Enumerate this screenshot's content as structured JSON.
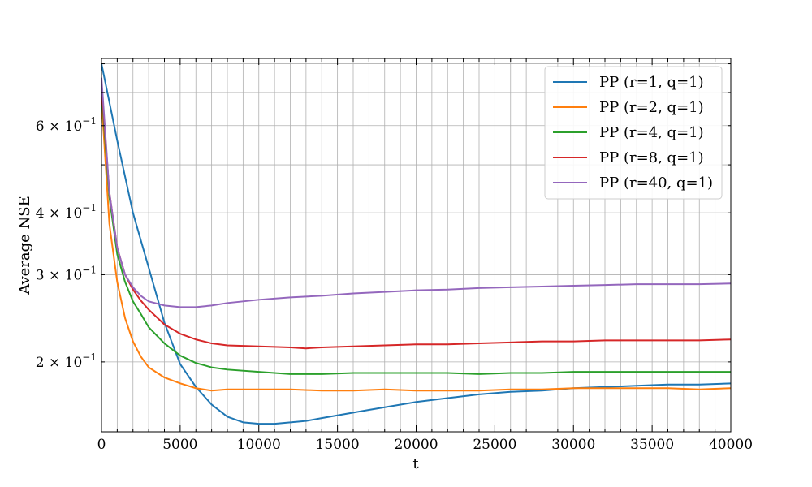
{
  "chart_data": {
    "type": "line",
    "title": "",
    "xlabel": "t",
    "ylabel": "Average NSE",
    "xlim": [
      0,
      40000
    ],
    "ylim": [
      0.1445,
      0.82
    ],
    "yscale": "log",
    "grid": true,
    "legend_position": "top-right",
    "x_ticks": [
      {
        "value": 0,
        "label": "0"
      },
      {
        "value": 5000,
        "label": "5000"
      },
      {
        "value": 10000,
        "label": "10000"
      },
      {
        "value": 15000,
        "label": "15000"
      },
      {
        "value": 20000,
        "label": "20000"
      },
      {
        "value": 25000,
        "label": "25000"
      },
      {
        "value": 30000,
        "label": "30000"
      },
      {
        "value": 35000,
        "label": "35000"
      },
      {
        "value": 40000,
        "label": "40000"
      }
    ],
    "y_ticks": [
      {
        "value": 0.2,
        "label": "2 × 10",
        "exp": "−1"
      },
      {
        "value": 0.3,
        "label": "3 × 10",
        "exp": "−1"
      },
      {
        "value": 0.4,
        "label": "4 × 10",
        "exp": "−1"
      },
      {
        "value": 0.6,
        "label": "6 × 10",
        "exp": "−1"
      }
    ],
    "series": [
      {
        "name": "PP (r=1, q=1)",
        "color": "#1f77b4",
        "points": [
          [
            0,
            0.8
          ],
          [
            1000,
            0.56
          ],
          [
            2000,
            0.4
          ],
          [
            3000,
            0.31
          ],
          [
            4000,
            0.24
          ],
          [
            5000,
            0.198
          ],
          [
            6000,
            0.178
          ],
          [
            7000,
            0.164
          ],
          [
            8000,
            0.155
          ],
          [
            9000,
            0.151
          ],
          [
            10000,
            0.15
          ],
          [
            11000,
            0.15
          ],
          [
            12000,
            0.151
          ],
          [
            13000,
            0.152
          ],
          [
            14000,
            0.154
          ],
          [
            15000,
            0.156
          ],
          [
            16000,
            0.158
          ],
          [
            17000,
            0.16
          ],
          [
            18000,
            0.162
          ],
          [
            20000,
            0.166
          ],
          [
            22000,
            0.169
          ],
          [
            24000,
            0.172
          ],
          [
            26000,
            0.174
          ],
          [
            28000,
            0.175
          ],
          [
            30000,
            0.177
          ],
          [
            32000,
            0.178
          ],
          [
            34000,
            0.179
          ],
          [
            36000,
            0.18
          ],
          [
            38000,
            0.18
          ],
          [
            40000,
            0.181
          ]
        ]
      },
      {
        "name": "PP (r=2, q=1)",
        "color": "#ff7f0e",
        "points": [
          [
            0,
            0.68
          ],
          [
            500,
            0.38
          ],
          [
            1000,
            0.29
          ],
          [
            1500,
            0.245
          ],
          [
            2000,
            0.22
          ],
          [
            2500,
            0.205
          ],
          [
            3000,
            0.195
          ],
          [
            4000,
            0.186
          ],
          [
            5000,
            0.181
          ],
          [
            6000,
            0.177
          ],
          [
            7000,
            0.175
          ],
          [
            8000,
            0.176
          ],
          [
            10000,
            0.176
          ],
          [
            12000,
            0.176
          ],
          [
            14000,
            0.175
          ],
          [
            16000,
            0.175
          ],
          [
            18000,
            0.176
          ],
          [
            20000,
            0.175
          ],
          [
            22000,
            0.175
          ],
          [
            24000,
            0.175
          ],
          [
            26000,
            0.176
          ],
          [
            28000,
            0.176
          ],
          [
            30000,
            0.177
          ],
          [
            32000,
            0.177
          ],
          [
            34000,
            0.177
          ],
          [
            36000,
            0.177
          ],
          [
            38000,
            0.176
          ],
          [
            40000,
            0.177
          ]
        ]
      },
      {
        "name": "PP (r=4, q=1)",
        "color": "#2ca02c",
        "points": [
          [
            0,
            0.7
          ],
          [
            500,
            0.43
          ],
          [
            1000,
            0.33
          ],
          [
            1500,
            0.29
          ],
          [
            2000,
            0.265
          ],
          [
            2500,
            0.25
          ],
          [
            3000,
            0.235
          ],
          [
            4000,
            0.218
          ],
          [
            5000,
            0.206
          ],
          [
            6000,
            0.199
          ],
          [
            7000,
            0.195
          ],
          [
            8000,
            0.193
          ],
          [
            10000,
            0.191
          ],
          [
            12000,
            0.189
          ],
          [
            14000,
            0.189
          ],
          [
            16000,
            0.19
          ],
          [
            18000,
            0.19
          ],
          [
            20000,
            0.19
          ],
          [
            22000,
            0.19
          ],
          [
            24000,
            0.189
          ],
          [
            26000,
            0.19
          ],
          [
            28000,
            0.19
          ],
          [
            30000,
            0.191
          ],
          [
            32000,
            0.191
          ],
          [
            34000,
            0.191
          ],
          [
            36000,
            0.191
          ],
          [
            38000,
            0.191
          ],
          [
            40000,
            0.191
          ]
        ]
      },
      {
        "name": "PP (r=8, q=1)",
        "color": "#d62728",
        "points": [
          [
            0,
            0.72
          ],
          [
            500,
            0.44
          ],
          [
            1000,
            0.34
          ],
          [
            1500,
            0.3
          ],
          [
            2000,
            0.28
          ],
          [
            2500,
            0.266
          ],
          [
            3000,
            0.255
          ],
          [
            4000,
            0.238
          ],
          [
            5000,
            0.228
          ],
          [
            6000,
            0.222
          ],
          [
            7000,
            0.218
          ],
          [
            8000,
            0.216
          ],
          [
            10000,
            0.215
          ],
          [
            12000,
            0.214
          ],
          [
            13000,
            0.213
          ],
          [
            14000,
            0.214
          ],
          [
            16000,
            0.215
          ],
          [
            18000,
            0.216
          ],
          [
            20000,
            0.217
          ],
          [
            22000,
            0.217
          ],
          [
            24000,
            0.218
          ],
          [
            26000,
            0.219
          ],
          [
            28000,
            0.22
          ],
          [
            30000,
            0.22
          ],
          [
            32000,
            0.221
          ],
          [
            34000,
            0.221
          ],
          [
            36000,
            0.221
          ],
          [
            38000,
            0.221
          ],
          [
            40000,
            0.222
          ]
        ]
      },
      {
        "name": "PP (r=40, q=1)",
        "color": "#9467bd",
        "points": [
          [
            0,
            0.75
          ],
          [
            500,
            0.44
          ],
          [
            1000,
            0.34
          ],
          [
            1500,
            0.3
          ],
          [
            2000,
            0.283
          ],
          [
            2500,
            0.272
          ],
          [
            3000,
            0.265
          ],
          [
            4000,
            0.26
          ],
          [
            5000,
            0.258
          ],
          [
            6000,
            0.258
          ],
          [
            7000,
            0.26
          ],
          [
            8000,
            0.263
          ],
          [
            10000,
            0.267
          ],
          [
            12000,
            0.27
          ],
          [
            14000,
            0.272
          ],
          [
            16000,
            0.275
          ],
          [
            18000,
            0.277
          ],
          [
            20000,
            0.279
          ],
          [
            22000,
            0.28
          ],
          [
            24000,
            0.282
          ],
          [
            26000,
            0.283
          ],
          [
            28000,
            0.284
          ],
          [
            30000,
            0.285
          ],
          [
            32000,
            0.286
          ],
          [
            34000,
            0.287
          ],
          [
            36000,
            0.287
          ],
          [
            38000,
            0.287
          ],
          [
            40000,
            0.288
          ]
        ]
      }
    ]
  }
}
